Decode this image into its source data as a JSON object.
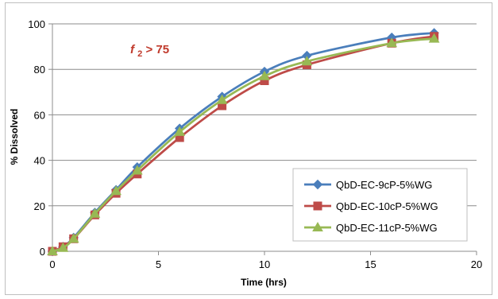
{
  "chart_data": {
    "type": "line",
    "title": "",
    "xlabel": "Time (hrs)",
    "ylabel": "% Dissolved",
    "xlim": [
      0,
      20
    ],
    "ylim": [
      0,
      100
    ],
    "xticks": [
      0,
      5,
      10,
      15,
      20
    ],
    "yticks": [
      0,
      20,
      40,
      60,
      80,
      100
    ],
    "grid": "horizontal",
    "legend_position": "bottom-right",
    "annotation": {
      "italic": "f",
      "subscript": "2",
      "rest": " > 75"
    },
    "x": [
      0,
      0.5,
      1,
      2,
      3,
      4,
      6,
      8,
      10,
      12,
      16,
      18
    ],
    "series": [
      {
        "name": "QbD-EC-9cP-5%WG",
        "color": "#4a7ebb",
        "marker": "diamond",
        "values": [
          0,
          2,
          6,
          17,
          27,
          37,
          54,
          68,
          79,
          86,
          94,
          96
        ]
      },
      {
        "name": "QbD-EC-10cP-5%WG",
        "color": "#be4b48",
        "marker": "square",
        "values": [
          0,
          2,
          5.5,
          16,
          25.5,
          34,
          50,
          64,
          75,
          82,
          91.5,
          94.5
        ]
      },
      {
        "name": "QbD-EC-11cP-5%WG",
        "color": "#98b954",
        "marker": "triangle",
        "values": [
          0,
          1.5,
          5.5,
          16.5,
          26.5,
          35.5,
          52.5,
          66.5,
          77,
          83.5,
          91.5,
          93.5
        ]
      }
    ]
  }
}
